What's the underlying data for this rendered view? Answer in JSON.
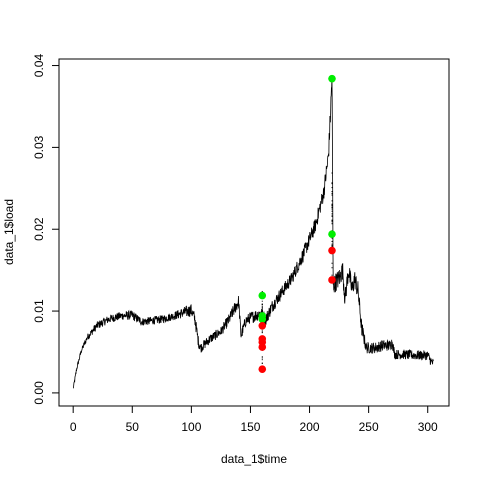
{
  "chart_data": {
    "type": "scatter",
    "title": "",
    "xlabel": "data_1$time",
    "ylabel": "data_1$load",
    "xlim": [
      -12,
      318
    ],
    "ylim": [
      -0.0016,
      0.0408
    ],
    "xticks": [
      0,
      50,
      100,
      150,
      200,
      250,
      300
    ],
    "yticks": [
      0.0,
      0.01,
      0.02,
      0.03,
      0.04
    ],
    "ytick_labels": [
      "0.00",
      "0.01",
      "0.02",
      "0.03",
      "0.04"
    ],
    "grid": false,
    "series": [
      {
        "color": "#000000",
        "style": "dense-line",
        "x": [
          0,
          3,
          7,
          12,
          20,
          30,
          40,
          50,
          55,
          58,
          65,
          75,
          85,
          95,
          100,
          103,
          106,
          108,
          115,
          125,
          132,
          137,
          140,
          142,
          146,
          150,
          155,
          159,
          163,
          168,
          175,
          185,
          195,
          205,
          212,
          216,
          218,
          219,
          220,
          222,
          225,
          228,
          230,
          233,
          236,
          238,
          241,
          244,
          248,
          255,
          262,
          268,
          270,
          272,
          280,
          290,
          300,
          303,
          305
        ],
        "y": [
          0.0005,
          0.003,
          0.0052,
          0.0068,
          0.0082,
          0.009,
          0.0094,
          0.0095,
          0.009,
          0.0087,
          0.0088,
          0.009,
          0.0094,
          0.0099,
          0.0101,
          0.009,
          0.0062,
          0.0055,
          0.0065,
          0.0075,
          0.009,
          0.0104,
          0.0112,
          0.007,
          0.0088,
          0.0092,
          0.0095,
          0.0098,
          0.009,
          0.0105,
          0.012,
          0.014,
          0.017,
          0.0205,
          0.0245,
          0.029,
          0.035,
          0.039,
          0.013,
          0.0135,
          0.014,
          0.015,
          0.0115,
          0.015,
          0.0125,
          0.014,
          0.0125,
          0.008,
          0.0055,
          0.0055,
          0.0058,
          0.0058,
          0.0062,
          0.0047,
          0.0047,
          0.0046,
          0.0046,
          0.0038,
          0.0036
        ],
        "noise": [
          0.0002,
          0.0003,
          0.0003,
          0.0004,
          0.0005,
          0.0005,
          0.0005,
          0.0006,
          0.0005,
          0.0005,
          0.0005,
          0.0005,
          0.0005,
          0.0007,
          0.0008,
          0.0008,
          0.0007,
          0.0006,
          0.0006,
          0.0006,
          0.0007,
          0.0008,
          0.0008,
          0.0007,
          0.0007,
          0.0007,
          0.0008,
          0.0007,
          0.0008,
          0.0008,
          0.0008,
          0.0008,
          0.0009,
          0.0009,
          0.001,
          0.0012,
          0.0015,
          0.0015,
          0.0012,
          0.0012,
          0.0012,
          0.0012,
          0.0012,
          0.0012,
          0.0012,
          0.0012,
          0.0012,
          0.001,
          0.0007,
          0.0007,
          0.0007,
          0.0007,
          0.0007,
          0.0006,
          0.0006,
          0.0006,
          0.0006,
          0.0006,
          0.0006
        ]
      },
      {
        "color": "#00ee00",
        "style": "points",
        "x": [
          160,
          160,
          160,
          219,
          219
        ],
        "y": [
          0.0119,
          0.0094,
          0.009,
          0.0384,
          0.0194
        ]
      },
      {
        "color": "#ff0000",
        "style": "points",
        "x": [
          160,
          160,
          160,
          160,
          160,
          219,
          219
        ],
        "y": [
          0.0082,
          0.0066,
          0.0062,
          0.0056,
          0.0029,
          0.0174,
          0.0138
        ]
      }
    ]
  }
}
